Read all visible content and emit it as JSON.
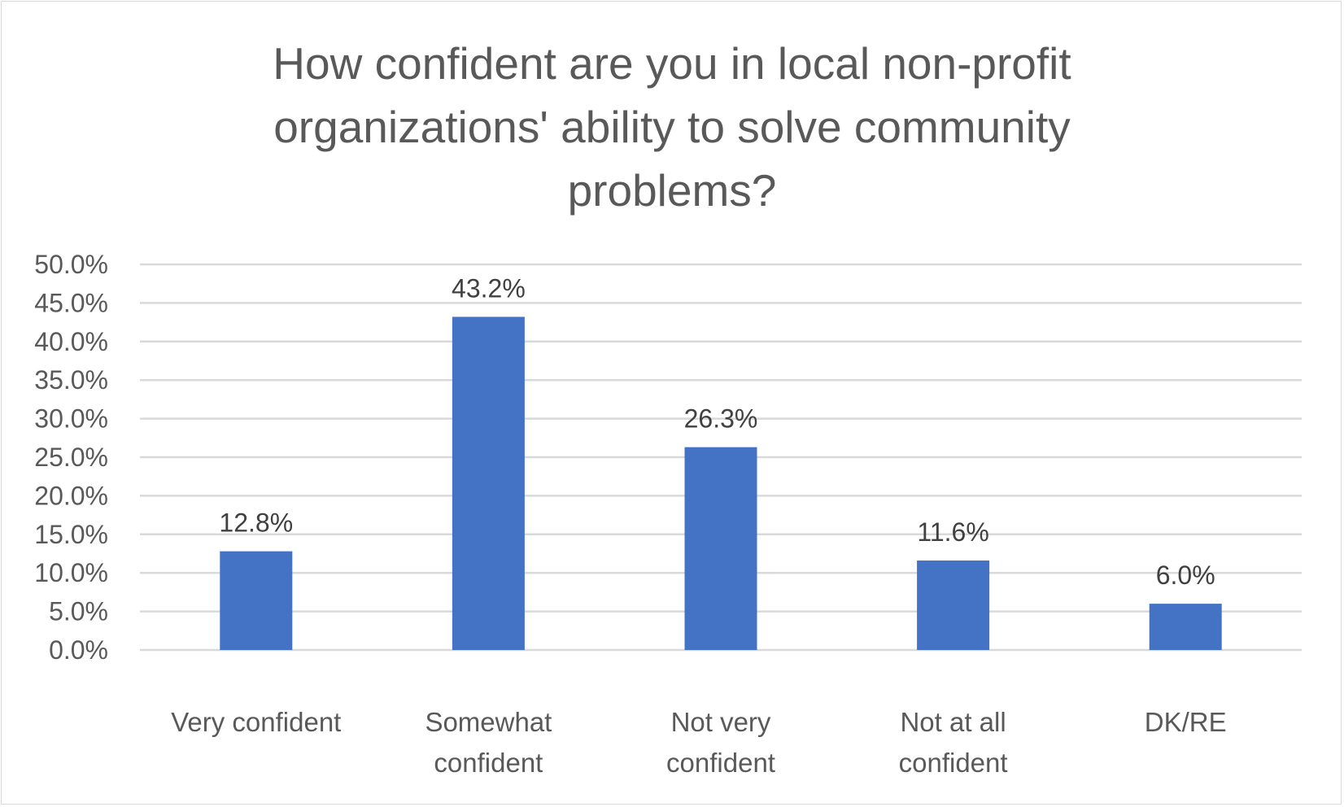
{
  "chart_data": {
    "type": "bar",
    "title": [
      "How confident are you in local non-profit",
      "organizations' ability to solve community",
      "problems?"
    ],
    "categories": [
      [
        "Very confident"
      ],
      [
        "Somewhat",
        "confident"
      ],
      [
        "Not very",
        "confident"
      ],
      [
        "Not at all",
        "confident"
      ],
      [
        "DK/RE"
      ]
    ],
    "values": [
      12.8,
      43.2,
      26.3,
      11.6,
      6.0
    ],
    "data_labels": [
      "12.8%",
      "43.2%",
      "26.3%",
      "11.6%",
      "6.0%"
    ],
    "ylim": [
      0,
      50
    ],
    "yticks": [
      "0.0%",
      "5.0%",
      "10.0%",
      "15.0%",
      "20.0%",
      "25.0%",
      "30.0%",
      "35.0%",
      "40.0%",
      "45.0%",
      "50.0%"
    ],
    "grid": true,
    "legend": "none",
    "colors": {
      "bar": "#4472c4",
      "grid": "#d9d9d9",
      "text": "#595959"
    }
  }
}
